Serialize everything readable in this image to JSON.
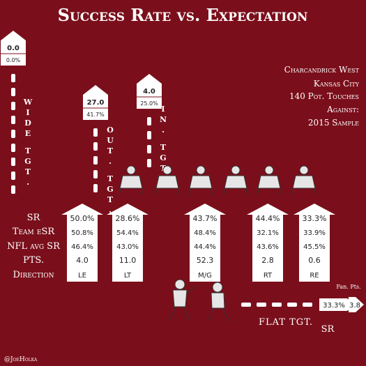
{
  "title": "Success Rate vs. Expectation",
  "credit": "@JoeHolka",
  "info": [
    "Charcandrick West",
    "Kansas City",
    "140 Pot. Touches",
    "Against:",
    "2015 Sample"
  ],
  "row_labels": [
    "SR",
    "Team eSR",
    "NFL avg SR",
    "PTS.",
    "Direction"
  ],
  "chart_data": {
    "type": "table",
    "title": "Success Rate vs. Expectation",
    "run_directions": [
      {
        "direction": "LE",
        "sr": "50.0%",
        "team_esr": "50.8%",
        "nfl_avg_sr": "46.4%",
        "pts": "4.0"
      },
      {
        "direction": "LT",
        "sr": "28.6%",
        "team_esr": "54.4%",
        "nfl_avg_sr": "43.0%",
        "pts": "11.0"
      },
      {
        "direction": "M/G",
        "sr": "43.7%",
        "team_esr": "48.4%",
        "nfl_avg_sr": "44.4%",
        "pts": "52.3"
      },
      {
        "direction": "RT",
        "sr": "44.4%",
        "team_esr": "32.1%",
        "nfl_avg_sr": "43.6%",
        "pts": "2.8"
      },
      {
        "direction": "RE",
        "sr": "33.3%",
        "team_esr": "33.9%",
        "nfl_avg_sr": "45.5%",
        "pts": "0.6"
      }
    ],
    "pass_targets": [
      {
        "route": "Wide Tgt.",
        "pts": "0.0",
        "sr": "0.0%"
      },
      {
        "route": "Out. Tgt.",
        "pts": "27.0",
        "sr": "41.7%"
      },
      {
        "route": "In. Tgt.",
        "pts": "4.0",
        "sr": "25.0%"
      }
    ],
    "flat_target": {
      "route": "Flat Tgt.",
      "sr": "33.3%",
      "pts": "3.8",
      "pts_label": "Fan. Pts.",
      "sr_label": "SR"
    }
  }
}
